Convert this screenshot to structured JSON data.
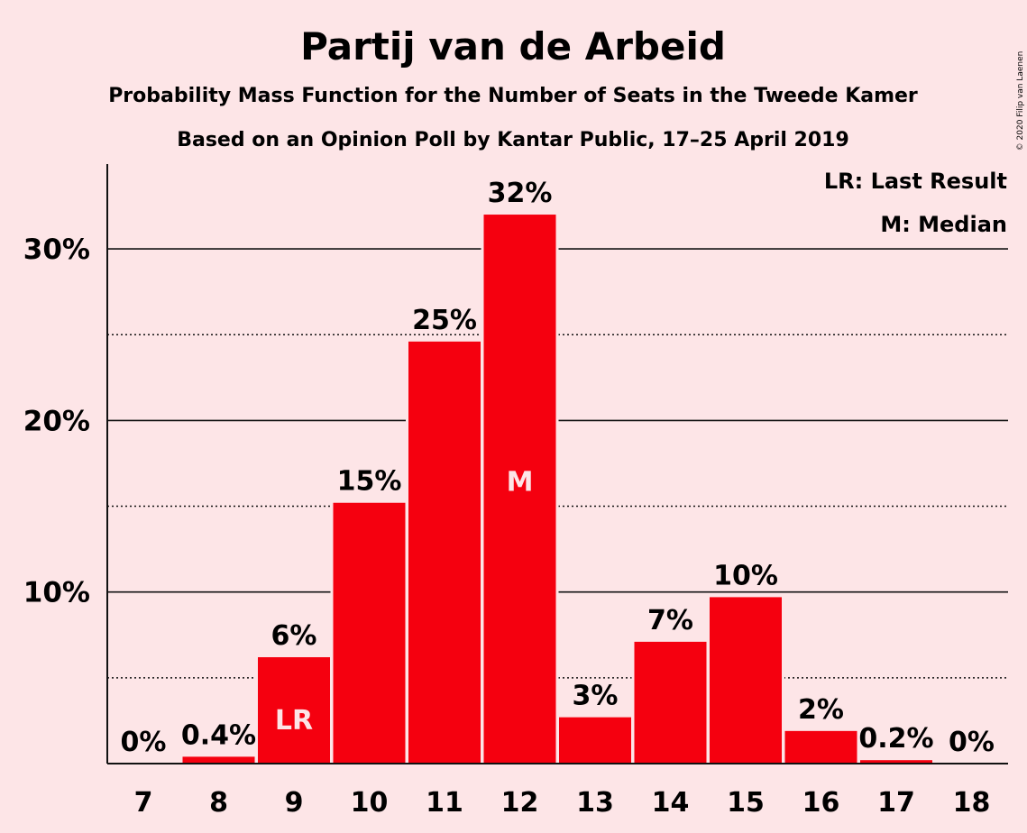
{
  "title": "Partij van de Arbeid",
  "subtitle": "Probability Mass Function for the Number of Seats in the Tweede Kamer",
  "subtitle2": "Based on an Opinion Poll by Kantar Public, 17–25 April 2019",
  "copyright": "© 2020 Filip van Laenen",
  "legend": {
    "last_result": "LR: Last Result",
    "median": "M: Median"
  },
  "colors": {
    "bar": "#F5000F",
    "background": "#FDE5E7"
  },
  "chart_data": {
    "type": "bar",
    "title": "Partij van de Arbeid",
    "xlabel": "",
    "ylabel": "",
    "ylim": [
      0,
      35
    ],
    "yticks": [
      {
        "value": 10,
        "label": "10%"
      },
      {
        "value": 20,
        "label": "20%"
      },
      {
        "value": 30,
        "label": "30%"
      }
    ],
    "minor_gridlines": [
      5,
      15,
      25
    ],
    "categories": [
      "7",
      "8",
      "9",
      "10",
      "11",
      "12",
      "13",
      "14",
      "15",
      "16",
      "17",
      "18"
    ],
    "values": [
      0,
      0.4,
      6.2,
      15.2,
      24.6,
      32.0,
      2.7,
      7.1,
      9.7,
      1.9,
      0.2,
      0
    ],
    "labels": [
      "0%",
      "0.4%",
      "6%",
      "15%",
      "25%",
      "32%",
      "3%",
      "7%",
      "10%",
      "2%",
      "0.2%",
      "0%"
    ],
    "markers": {
      "9": "LR",
      "12": "M"
    },
    "legend_position": "top-right"
  }
}
